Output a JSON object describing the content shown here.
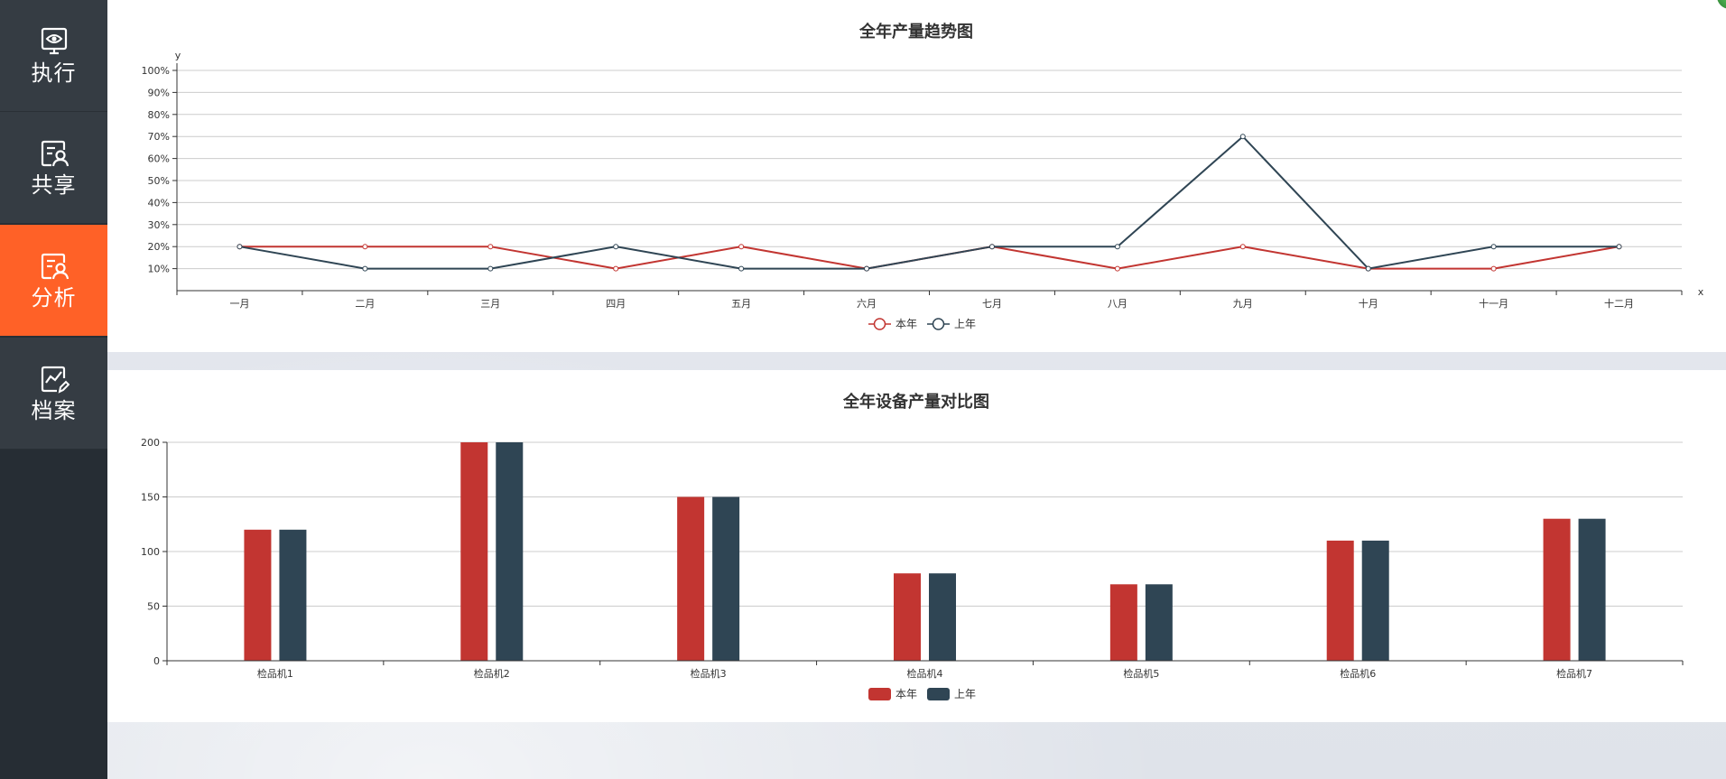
{
  "sidebar": {
    "items": [
      {
        "label": "执行",
        "icon": "eye-icon",
        "active": false
      },
      {
        "label": "共享",
        "icon": "user-card-icon",
        "active": false
      },
      {
        "label": "分析",
        "icon": "user-card-icon",
        "active": true
      },
      {
        "label": "档案",
        "icon": "chart-edit-icon",
        "active": false
      }
    ]
  },
  "colors": {
    "sidebar_bg": "#262d34",
    "nav_bg": "#353c43",
    "active": "#ff6127",
    "series_current": "#c23531",
    "series_last": "#2f4554"
  },
  "chart_data": [
    {
      "type": "line",
      "title": "全年产量趋势图",
      "xlabel": "x",
      "ylabel": "y",
      "categories": [
        "一月",
        "二月",
        "三月",
        "四月",
        "五月",
        "六月",
        "七月",
        "八月",
        "九月",
        "十月",
        "十一月",
        "十二月"
      ],
      "ylim": [
        0,
        100
      ],
      "yticks": [
        "10%",
        "20%",
        "30%",
        "40%",
        "50%",
        "60%",
        "70%",
        "80%",
        "90%",
        "100%"
      ],
      "grid": true,
      "legend": "bottom-center",
      "series": [
        {
          "name": "本年",
          "values": [
            20,
            20,
            20,
            10,
            20,
            10,
            20,
            10,
            20,
            10,
            10,
            20
          ]
        },
        {
          "name": "上年",
          "values": [
            20,
            10,
            10,
            20,
            10,
            10,
            20,
            20,
            70,
            10,
            20,
            20
          ]
        }
      ]
    },
    {
      "type": "bar",
      "title": "全年设备产量对比图",
      "categories": [
        "检品机1",
        "检品机2",
        "检品机3",
        "检品机4",
        "检品机5",
        "检品机6",
        "检品机7"
      ],
      "ylim": [
        0,
        200
      ],
      "yticks": [
        "0",
        "50",
        "100",
        "150",
        "200"
      ],
      "grid": true,
      "legend": "bottom-center",
      "series": [
        {
          "name": "本年",
          "values": [
            120,
            200,
            150,
            80,
            70,
            110,
            130
          ]
        },
        {
          "name": "上年",
          "values": [
            120,
            200,
            150,
            80,
            70,
            110,
            130
          ]
        }
      ]
    }
  ]
}
